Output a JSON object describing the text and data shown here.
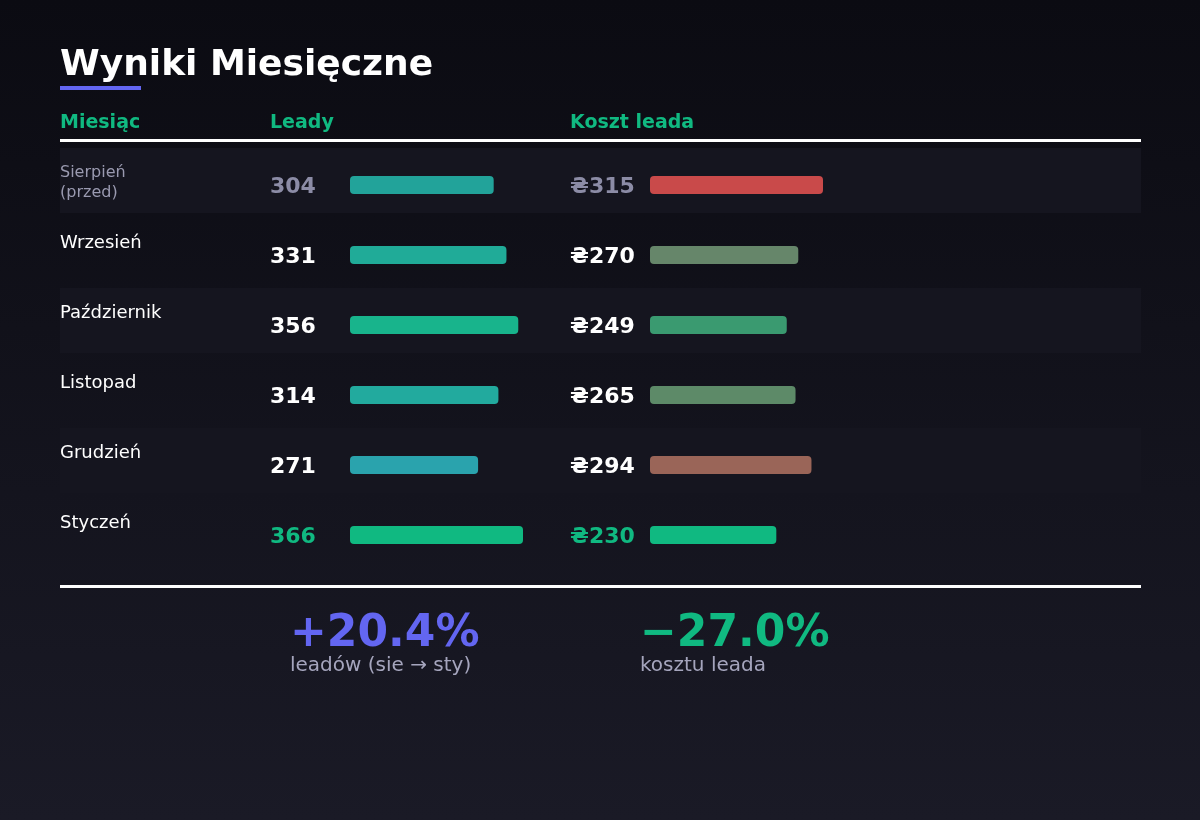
{
  "chart_data": [
    {
      "type": "bar",
      "orientation": "horizontal",
      "title": "Wyniki Miesięczne",
      "ylabel": "Miesiąc",
      "xlabel": "Leady",
      "categories": [
        "Sierpień\n(przed)",
        "Wrzesień",
        "Październik",
        "Listopad",
        "Grudzień",
        "Styczeń"
      ],
      "values": [
        304,
        331,
        356,
        314,
        271,
        366
      ],
      "colors": [
        "#22a39a",
        "#20ab98",
        "#18b48c",
        "#22aa9e",
        "#2aa3ad",
        "#10b981"
      ],
      "data_labels": true,
      "annotations": [
        "+20.4%",
        "leadów (sie → sty)"
      ]
    },
    {
      "type": "bar",
      "orientation": "horizontal",
      "xlabel": "Koszt leada",
      "categories": [
        null,
        null,
        null,
        null,
        null,
        null
      ],
      "values": [
        315,
        270,
        249,
        265,
        294,
        230
      ],
      "colors": [
        "#c94a4a",
        "#66866a",
        "#3a9a70",
        "#5d8a68",
        "#9a6558",
        "#10b981"
      ],
      "value_labels": [
        "₴315",
        "₴270",
        "₴249",
        "₴265",
        "₴294",
        "₴230"
      ],
      "annotations": [
        "−27.0%",
        "kosztu leada"
      ]
    }
  ]
}
